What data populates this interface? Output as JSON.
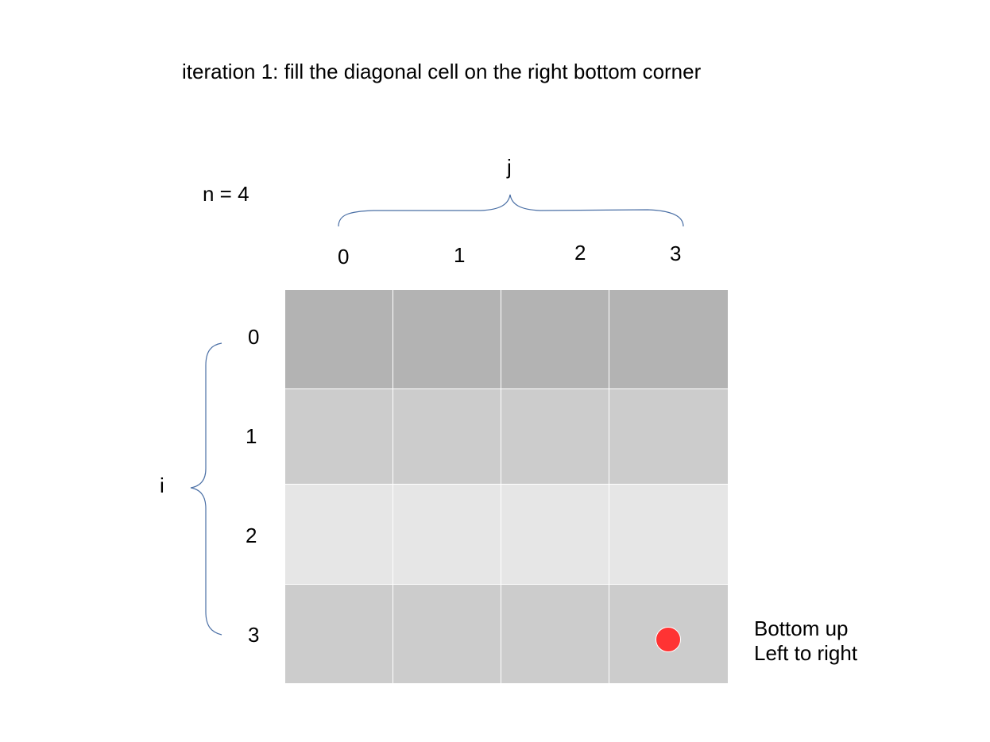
{
  "title": "iteration 1: fill the diagonal cell on the right bottom corner",
  "n_label": "n = 4",
  "axes": {
    "column_axis_label": "j",
    "row_axis_label": "i",
    "column_indices": [
      "0",
      "1",
      "2",
      "3"
    ],
    "row_indices": [
      "0",
      "1",
      "2",
      "3"
    ]
  },
  "grid": {
    "rows": 4,
    "columns": 4,
    "row_shades": [
      "#b3b3b3",
      "#cccccc",
      "#e6e6e6",
      "#cccccc"
    ],
    "marked_cell": {
      "row": 3,
      "column": 3,
      "color": "#ff3333"
    }
  },
  "note": {
    "line1": "Bottom up",
    "line2": "Left to right"
  },
  "brace_color": "#4a6fa5"
}
